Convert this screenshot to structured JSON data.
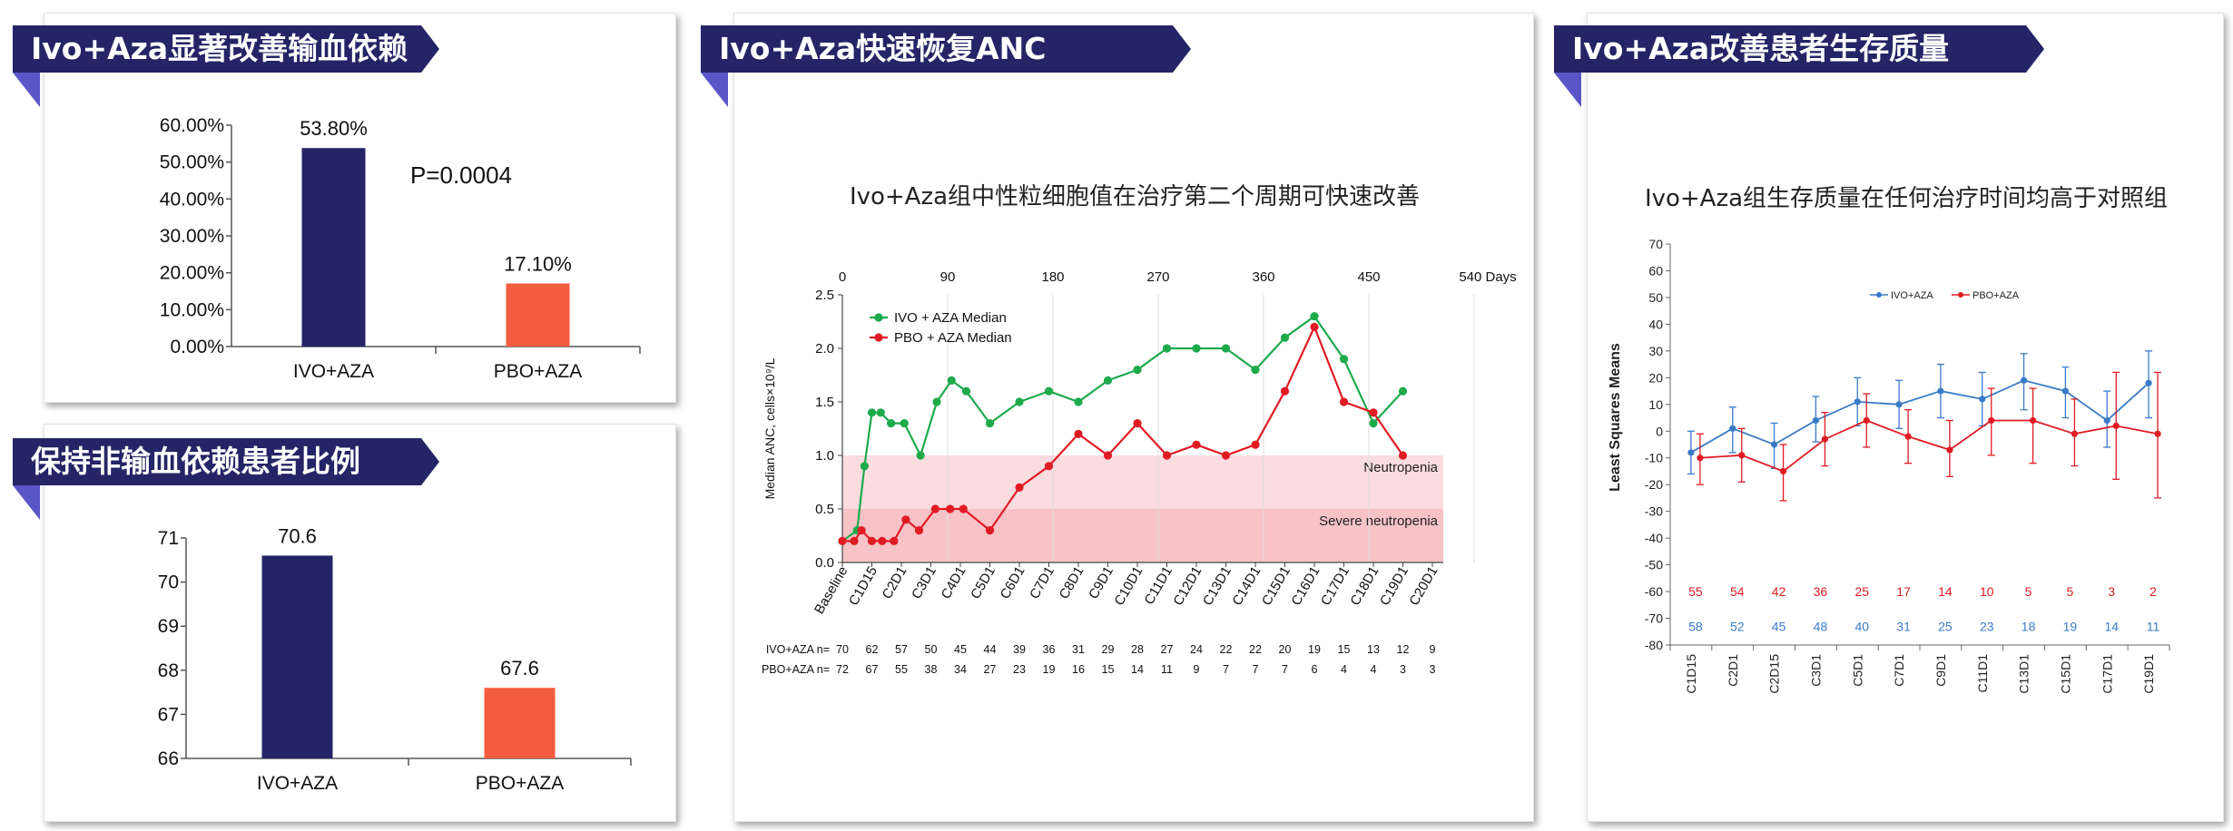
{
  "colors": {
    "navy": "#252466",
    "accent": "#5a56c8",
    "orange": "#f45c3f",
    "green": "#1daa4b",
    "red": "#e01b24",
    "blue": "#3a7bc8",
    "band_light": "#fbdcdf",
    "band_dark": "#f7c3c7"
  },
  "panels": {
    "p1": {
      "banner": "Ivo+Aza显著改善输血依赖"
    },
    "p2": {
      "banner": "保持非输血依赖患者比例"
    },
    "p3": {
      "banner": "Ivo+Aza快速恢复ANC"
    },
    "p4": {
      "banner": "Ivo+Aza改善患者生存质量"
    }
  },
  "chart_data": [
    {
      "type": "bar",
      "categories": [
        "IVO+AZA",
        "PBO+AZA"
      ],
      "values": [
        53.8,
        17.1
      ],
      "value_labels": [
        "53.80%",
        "17.10%"
      ],
      "ylim": [
        0,
        60
      ],
      "yticks": [
        "0.00%",
        "10.00%",
        "20.00%",
        "30.00%",
        "40.00%",
        "50.00%",
        "60.00%"
      ],
      "annotation": "P=0.0004"
    },
    {
      "type": "bar",
      "categories": [
        "IVO+AZA",
        "PBO+AZA"
      ],
      "values": [
        70.6,
        67.6
      ],
      "value_labels": [
        "70.6",
        "67.6"
      ],
      "ylim": [
        66,
        71
      ],
      "yticks": [
        "66",
        "67",
        "68",
        "69",
        "70",
        "71"
      ]
    },
    {
      "type": "line",
      "title": "Ivo+Aza组中性粒细胞值在治疗第二个周期可快速改善",
      "ylabel": "Median ANC, cells×10⁹/L",
      "ylim": [
        0,
        2.5
      ],
      "yticks": [
        "0.0",
        "0.5",
        "1.0",
        "1.5",
        "2.0",
        "2.5"
      ],
      "top_axis": [
        "0",
        "90",
        "180",
        "270",
        "360",
        "450",
        "540 Days"
      ],
      "categories": [
        "Baseline",
        "C1D15",
        "C2D1",
        "C3D1",
        "C4D1",
        "C5D1",
        "C6D1",
        "C7D1",
        "C8D1",
        "C9D1",
        "C10D1",
        "C11D1",
        "C12D1",
        "C13D1",
        "C14D1",
        "C15D1",
        "C16D1",
        "C17D1",
        "C18D1",
        "C19D1",
        "C20D1"
      ],
      "bands": [
        {
          "label": "Neutropenia",
          "from": 0.5,
          "to": 1.0
        },
        {
          "label": "Severe neutropenia",
          "from": 0,
          "to": 0.5
        }
      ],
      "series": [
        {
          "name": "IVO + AZA Median",
          "points": [
            [
              0,
              0.2
            ],
            [
              0.5,
              0.3
            ],
            [
              0.75,
              0.9
            ],
            [
              1,
              1.4
            ],
            [
              1.3,
              1.4
            ],
            [
              1.65,
              1.3
            ],
            [
              2.1,
              1.3
            ],
            [
              2.65,
              1.0
            ],
            [
              3.2,
              1.5
            ],
            [
              3.7,
              1.7
            ],
            [
              4.2,
              1.6
            ],
            [
              5,
              1.3
            ],
            [
              6,
              1.5
            ],
            [
              7,
              1.6
            ],
            [
              8,
              1.5
            ],
            [
              9,
              1.7
            ],
            [
              10,
              1.8
            ],
            [
              11,
              2.0
            ],
            [
              12,
              2.0
            ],
            [
              13,
              2.0
            ],
            [
              14,
              1.8
            ],
            [
              15,
              2.1
            ],
            [
              16,
              2.3
            ],
            [
              17,
              1.9
            ],
            [
              18,
              1.3
            ],
            [
              19,
              1.6
            ]
          ]
        },
        {
          "name": "PBO + AZA Median",
          "points": [
            [
              0,
              0.2
            ],
            [
              0.4,
              0.2
            ],
            [
              0.65,
              0.3
            ],
            [
              1,
              0.2
            ],
            [
              1.35,
              0.2
            ],
            [
              1.75,
              0.2
            ],
            [
              2.15,
              0.4
            ],
            [
              2.6,
              0.3
            ],
            [
              3.15,
              0.5
            ],
            [
              3.65,
              0.5
            ],
            [
              4.1,
              0.5
            ],
            [
              5,
              0.3
            ],
            [
              6,
              0.7
            ],
            [
              7,
              0.9
            ],
            [
              8,
              1.2
            ],
            [
              9,
              1.0
            ],
            [
              10,
              1.3
            ],
            [
              11,
              1.0
            ],
            [
              12,
              1.1
            ],
            [
              13,
              1.0
            ],
            [
              14,
              1.1
            ],
            [
              15,
              1.6
            ],
            [
              16,
              2.2
            ],
            [
              17,
              1.5
            ],
            [
              18,
              1.4
            ],
            [
              19,
              1.0
            ]
          ]
        }
      ],
      "n_rows": [
        {
          "label": "IVO+AZA n=",
          "values": [
            "70",
            "62",
            "57",
            "50",
            "45",
            "44",
            "39",
            "36",
            "31",
            "29",
            "28",
            "27",
            "24",
            "22",
            "22",
            "20",
            "19",
            "15",
            "13",
            "12",
            "9"
          ]
        },
        {
          "label": "PBO+AZA n=",
          "values": [
            "72",
            "67",
            "55",
            "38",
            "34",
            "27",
            "23",
            "19",
            "16",
            "15",
            "14",
            "11",
            "9",
            "7",
            "7",
            "7",
            "6",
            "4",
            "4",
            "3",
            "3"
          ]
        }
      ]
    },
    {
      "type": "line",
      "title": "Ivo+Aza组生存质量在任何治疗时间均高于对照组",
      "ylabel": "Least Squares Means",
      "ylim": [
        -80,
        70
      ],
      "yticks": [
        "-80",
        "-70",
        "-60",
        "-50",
        "-40",
        "-30",
        "-20",
        "-10",
        "0",
        "10",
        "20",
        "30",
        "40",
        "50",
        "60",
        "70"
      ],
      "categories": [
        "C1D15",
        "C2D1",
        "C2D15",
        "C3D1",
        "C5D1",
        "C7D1",
        "C9D1",
        "C11D1",
        "C13D1",
        "C15D1",
        "C17D1",
        "C19D1"
      ],
      "series": [
        {
          "name": "IVO+AZA",
          "values": [
            -8,
            1,
            -5,
            4,
            11,
            10,
            15,
            12,
            19,
            15,
            4,
            18
          ],
          "error": [
            [
              -16,
              0
            ],
            [
              -8,
              9
            ],
            [
              -14,
              3
            ],
            [
              -4,
              13
            ],
            [
              2,
              20
            ],
            [
              1,
              19
            ],
            [
              5,
              25
            ],
            [
              2,
              22
            ],
            [
              8,
              29
            ],
            [
              5,
              24
            ],
            [
              -6,
              15
            ],
            [
              5,
              30
            ]
          ]
        },
        {
          "name": "PBO+AZA",
          "values": [
            -10,
            -9,
            -15,
            -3,
            4,
            -2,
            -7,
            4,
            4,
            -1,
            2,
            -1
          ],
          "error": [
            [
              -20,
              -1
            ],
            [
              -19,
              1
            ],
            [
              -26,
              -5
            ],
            [
              -13,
              7
            ],
            [
              -6,
              14
            ],
            [
              -12,
              8
            ],
            [
              -17,
              4
            ],
            [
              -9,
              16
            ],
            [
              -12,
              16
            ],
            [
              -13,
              12
            ],
            [
              -18,
              22
            ],
            [
              -25,
              22
            ]
          ]
        }
      ],
      "n_rows": [
        {
          "label": "PBO+AZA",
          "values": [
            "55",
            "54",
            "42",
            "36",
            "25",
            "17",
            "14",
            "10",
            "5",
            "5",
            "3",
            "2"
          ]
        },
        {
          "label": "IVO+AZA",
          "values": [
            "58",
            "52",
            "45",
            "48",
            "40",
            "31",
            "25",
            "23",
            "18",
            "19",
            "14",
            "11"
          ]
        }
      ]
    }
  ]
}
